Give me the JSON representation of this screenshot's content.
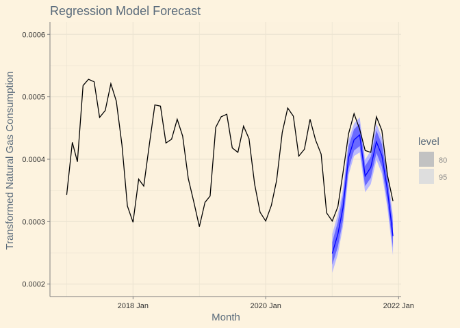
{
  "chart_data": {
    "type": "line",
    "title": "Regression Model Forecast",
    "xlabel": "Month",
    "ylabel": "Transformed Natural Gas Consumption",
    "xlim": [
      "2016-10-01",
      "2022-01-15"
    ],
    "ylim": [
      0.00018,
      0.00062
    ],
    "x_ticks": [
      {
        "date": "2018-01-01",
        "label": "2018 Jan"
      },
      {
        "date": "2020-01-01",
        "label": "2020 Jan"
      },
      {
        "date": "2022-01-01",
        "label": "2022 Jan"
      }
    ],
    "y_ticks": [
      {
        "value": 0.0002,
        "label": "0.0002"
      },
      {
        "value": 0.0003,
        "label": "0.0003"
      },
      {
        "value": 0.0004,
        "label": "0.0004"
      },
      {
        "value": 0.0005,
        "label": "0.0005"
      },
      {
        "value": 0.0006,
        "label": "0.0006"
      }
    ],
    "grid": true,
    "colors": {
      "background": "#fdf3df",
      "panel": "#fcf2de",
      "grid": "#ece4d2",
      "actual": "#000000",
      "forecast": "#0000ff",
      "band80": "#6a6aff",
      "band95": "#b9b9ff",
      "legend80": "#c2c2c2",
      "legend95": "#dedede",
      "axis": "#7f7f7f"
    },
    "series": [
      {
        "role": "actual",
        "x": [
          "2017-01",
          "2017-02",
          "2017-03",
          "2017-04",
          "2017-05",
          "2017-06",
          "2017-07",
          "2017-08",
          "2017-09",
          "2017-10",
          "2017-11",
          "2017-12",
          "2018-01",
          "2018-02",
          "2018-03",
          "2018-04",
          "2018-05",
          "2018-06",
          "2018-07",
          "2018-08",
          "2018-09",
          "2018-10",
          "2018-11",
          "2018-12",
          "2019-01",
          "2019-02",
          "2019-03",
          "2019-04",
          "2019-05",
          "2019-06",
          "2019-07",
          "2019-08",
          "2019-09",
          "2019-10",
          "2019-11",
          "2019-12",
          "2020-01",
          "2020-02",
          "2020-03",
          "2020-04",
          "2020-05",
          "2020-06",
          "2020-07",
          "2020-08",
          "2020-09",
          "2020-10",
          "2020-11",
          "2020-12",
          "2021-01",
          "2021-02",
          "2021-03",
          "2021-04",
          "2021-05",
          "2021-06",
          "2021-07",
          "2021-08",
          "2021-09",
          "2021-10",
          "2021-11",
          "2021-12"
        ],
        "values": [
          0.000343,
          0.000427,
          0.000396,
          0.000518,
          0.000528,
          0.000524,
          0.000467,
          0.000478,
          0.000521,
          0.000493,
          0.000423,
          0.000325,
          0.000299,
          0.000368,
          0.000357,
          0.000424,
          0.000487,
          0.000485,
          0.000426,
          0.000432,
          0.000464,
          0.000437,
          0.000369,
          0.000332,
          0.000292,
          0.000331,
          0.000341,
          0.000451,
          0.000468,
          0.000472,
          0.000418,
          0.000411,
          0.000453,
          0.000433,
          0.00036,
          0.000315,
          0.000301,
          0.000326,
          0.000366,
          0.000443,
          0.000482,
          0.000469,
          0.000405,
          0.000416,
          0.000464,
          0.000431,
          0.000408,
          0.000314,
          0.000301,
          0.000324,
          0.000378,
          0.000441,
          0.000473,
          0.000448,
          0.000414,
          0.000411,
          0.000468,
          0.000446,
          0.000374,
          0.000333
        ]
      },
      {
        "role": "forecast",
        "x": [
          "2021-01",
          "2021-02",
          "2021-03",
          "2021-04",
          "2021-05",
          "2021-06",
          "2021-07",
          "2021-08",
          "2021-09",
          "2021-10",
          "2021-11",
          "2021-12"
        ],
        "values": [
          0.000249,
          0.00028,
          0.000322,
          0.000403,
          0.000431,
          0.000439,
          0.000373,
          0.000387,
          0.000428,
          0.000406,
          0.00035,
          0.000277
        ],
        "lo80": [
          0.000231,
          0.00026,
          0.000302,
          0.000385,
          0.000414,
          0.000421,
          0.000357,
          0.00037,
          0.00041,
          0.000388,
          0.000331,
          0.000258
        ],
        "hi80": [
          0.000267,
          0.0003,
          0.000342,
          0.000421,
          0.000448,
          0.000457,
          0.000389,
          0.000404,
          0.000446,
          0.000424,
          0.000369,
          0.000296
        ],
        "lo95": [
          0.000218,
          0.000248,
          0.000292,
          0.000375,
          0.000405,
          0.000411,
          0.000347,
          0.00036,
          0.000399,
          0.000377,
          0.000321,
          0.000246
        ],
        "hi95": [
          0.00028,
          0.000312,
          0.000352,
          0.000431,
          0.000457,
          0.000467,
          0.000399,
          0.000414,
          0.000457,
          0.000435,
          0.000379,
          0.000308
        ]
      }
    ],
    "legend": {
      "title": "level",
      "position": "right",
      "items": [
        {
          "label": "80",
          "color": "#c2c2c2"
        },
        {
          "label": "95",
          "color": "#dedede"
        }
      ]
    }
  }
}
